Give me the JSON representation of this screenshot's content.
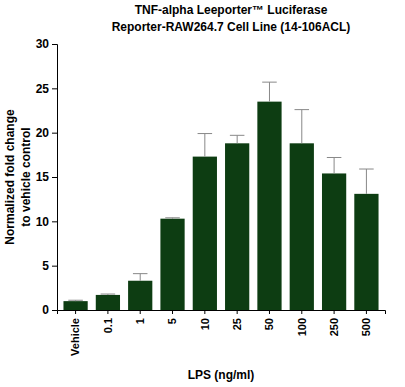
{
  "chart_data": {
    "type": "bar",
    "title": [
      "TNF-alpha Leeporter™ Luciferase",
      "Reporter-RAW264.7 Cell Line (14-106ACL)"
    ],
    "x_label": "LPS (ng/ml)",
    "y_label": [
      "Normalized fold change",
      "to vehicle control"
    ],
    "categories": [
      "Vehicle",
      "0.1",
      "1",
      "5",
      "10",
      "25",
      "50",
      "100",
      "250",
      "500"
    ],
    "values": [
      1.0,
      1.7,
      3.3,
      10.3,
      17.3,
      18.8,
      23.5,
      18.8,
      15.4,
      13.1
    ],
    "errors": [
      0.1,
      0.1,
      0.8,
      0.1,
      2.6,
      0.9,
      2.2,
      3.8,
      1.8,
      2.8
    ],
    "color": "#0d3d12",
    "ylim": [
      0,
      30
    ],
    "yticks": [
      0,
      5,
      10,
      15,
      20,
      25,
      30
    ],
    "grid": false
  }
}
